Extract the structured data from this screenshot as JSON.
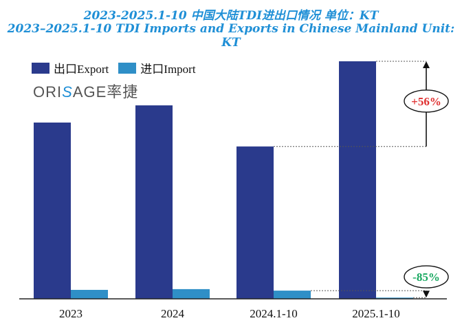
{
  "header": {
    "title_cn": "2023-2025.1-10 中国大陆TDI进出口情况 单位：KT",
    "title_en": "2023–2025.1-10 TDI Imports and Exports in Chinese Mainland  Unit: KT"
  },
  "logo": {
    "pre": "ORI",
    "mark": "S",
    "post": "AGE",
    "cn": "率捷"
  },
  "colors": {
    "export": "#2a3a8c",
    "import": "#2f8fc7",
    "up": "#e03030",
    "down": "#18a860"
  },
  "chart_data": {
    "type": "bar",
    "categories": [
      "2023",
      "2024",
      "2024.1-10",
      "2025.1-10"
    ],
    "series": [
      {
        "name": "出口Export",
        "values": [
          236,
          259,
          204,
          318
        ]
      },
      {
        "name": "进口Import",
        "values": [
          12,
          13,
          11,
          1.6
        ]
      }
    ],
    "ylim": [
      0,
      330
    ],
    "legend": "top-left",
    "annotations": [
      {
        "text": "+56%",
        "series": 0,
        "from_category": 2,
        "to_category": 3
      },
      {
        "text": "-85%",
        "series": 1,
        "from_category": 2,
        "to_category": 3
      }
    ]
  }
}
